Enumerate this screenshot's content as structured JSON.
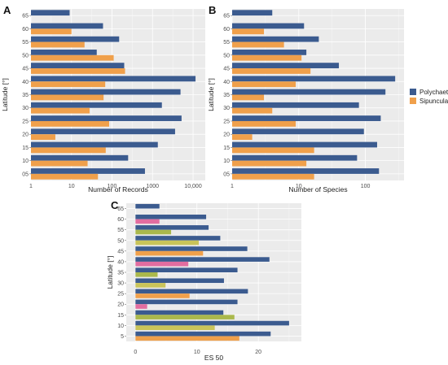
{
  "colors": {
    "polychaeta": "#3b5b8f",
    "sipuncula": "#f0a04b",
    "panel_bg": "#ebebeb",
    "c_sipuncula": [
      "#f0a04b",
      "#c9c45a",
      "#aab84c",
      "#e26da0"
    ]
  },
  "legend": {
    "items": [
      {
        "label": "Polychaeta",
        "color_key": "polychaeta"
      },
      {
        "label": "Sipuncula",
        "color_key": "sipuncula"
      }
    ]
  },
  "chart_data": [
    {
      "panel": "A",
      "type": "bar",
      "orientation": "horizontal",
      "scale_x": "log10",
      "xlim": [
        1,
        20000
      ],
      "xticks": [
        1,
        10,
        100,
        1000,
        10000
      ],
      "xtick_labels": [
        "1",
        "10",
        "100",
        "1000",
        "10,000"
      ],
      "xlabel": "Number of Records",
      "ylabel": "Latitude [°]",
      "categories": [
        "05",
        "10",
        "15",
        "20",
        "25",
        "30",
        "35",
        "40",
        "45",
        "50",
        "55",
        "60",
        "65"
      ],
      "series": [
        {
          "name": "Polychaeta",
          "values": [
            650,
            250,
            1350,
            3600,
            5200,
            1700,
            4900,
            11500,
            200,
            42,
            150,
            60,
            9
          ]
        },
        {
          "name": "Sipuncula",
          "values": [
            45,
            25,
            70,
            4,
            85,
            28,
            62,
            68,
            210,
            110,
            21,
            10,
            null
          ]
        }
      ]
    },
    {
      "panel": "B",
      "type": "bar",
      "orientation": "horizontal",
      "scale_x": "log10",
      "xlim": [
        1,
        380
      ],
      "xticks": [
        1,
        10,
        100
      ],
      "xtick_labels": [
        "1",
        "10",
        "100"
      ],
      "xlabel": "Number of Species",
      "ylabel": "Latitude [°]",
      "categories": [
        "05",
        "10",
        "15",
        "20",
        "25",
        "30",
        "35",
        "40",
        "45",
        "50",
        "55",
        "60",
        "65"
      ],
      "series": [
        {
          "name": "Polychaeta",
          "values": [
            160,
            75,
            150,
            95,
            170,
            80,
            200,
            280,
            40,
            13,
            20,
            12,
            4
          ]
        },
        {
          "name": "Sipuncula",
          "values": [
            17,
            13,
            17,
            2,
            9,
            4,
            3,
            9,
            15,
            11,
            6,
            3,
            null
          ]
        }
      ]
    },
    {
      "panel": "C",
      "type": "bar",
      "orientation": "horizontal",
      "xlim": [
        -1.5,
        27
      ],
      "xticks": [
        0,
        10,
        20
      ],
      "xtick_labels": [
        "0",
        "10",
        "20"
      ],
      "xlabel": "ES 50",
      "ylabel": "Latitude [°]",
      "categories": [
        "5",
        "10",
        "15",
        "20",
        "25",
        "30",
        "35",
        "40",
        "45",
        "50",
        "55",
        "60",
        "65"
      ],
      "series": [
        {
          "name": "Polychaeta",
          "values": [
            22,
            25,
            14.3,
            16.6,
            18.3,
            14.4,
            16.6,
            21.8,
            18.2,
            13.8,
            11.9,
            11.5,
            3.9
          ]
        },
        {
          "name": "Sipuncula",
          "values": [
            16.9,
            12.9,
            16.1,
            1.9,
            8.8,
            4.9,
            3.6,
            8.6,
            11.0,
            10.3,
            5.8,
            3.9,
            null
          ]
        }
      ]
    }
  ]
}
